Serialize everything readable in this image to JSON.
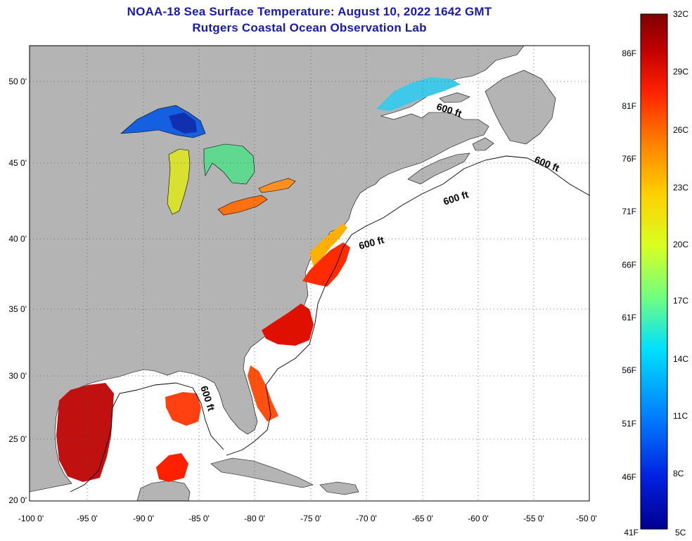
{
  "header": {
    "title": "NOAA-18 Sea Surface Temperature:  August 10, 2022 1642 GMT",
    "subtitle": "Rutgers Coastal Ocean Observation Lab"
  },
  "map": {
    "lon_ticks": [
      "-100 0'",
      "-95 0'",
      "-90 0'",
      "-85 0'",
      "-80 0'",
      "-75 0'",
      "-70 0'",
      "-65 0'",
      "-60 0'",
      "-55 0'",
      "-50 0'"
    ],
    "lat_ticks": [
      "50 0'",
      "45 0'",
      "40 0'",
      "35 0'",
      "30 0'",
      "25 0'",
      "20 0'"
    ],
    "depth_labels": [
      "600 ft",
      "600 ft",
      "600 ft",
      "600 ft",
      "600 ft"
    ],
    "land_color": "#b4b4b4",
    "ocean_color": "#ffffff"
  },
  "colorbar": {
    "celsius": [
      "32C",
      "29C",
      "26C",
      "23C",
      "20C",
      "17C",
      "14C",
      "11C",
      "8C",
      "5C"
    ],
    "fahrenheit": [
      "86F",
      "81F",
      "76F",
      "71F",
      "66F",
      "61F",
      "56F",
      "51F",
      "46F",
      "41F"
    ],
    "colors": [
      "#7f0000",
      "#c00000",
      "#ff2000",
      "#ff8000",
      "#ffd000",
      "#d8ff20",
      "#70ff80",
      "#00e0ff",
      "#0080ff",
      "#0020e0",
      "#00008f"
    ]
  }
}
